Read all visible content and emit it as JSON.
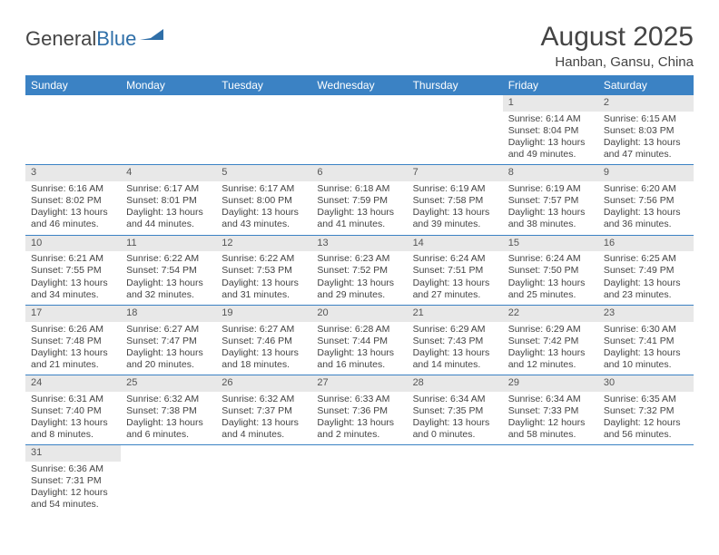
{
  "logo": {
    "text_a": "General",
    "text_b": "Blue"
  },
  "title": "August 2025",
  "subtitle": "Hanban, Gansu, China",
  "colors": {
    "accent": "#3b82c4",
    "daynum_bg": "#e8e8e8",
    "text": "#444444",
    "row_sep": "#3b82c4",
    "background": "#ffffff"
  },
  "weekdays": [
    "Sunday",
    "Monday",
    "Tuesday",
    "Wednesday",
    "Thursday",
    "Friday",
    "Saturday"
  ],
  "weeks": [
    [
      null,
      null,
      null,
      null,
      null,
      {
        "n": "1",
        "sunrise": "Sunrise: 6:14 AM",
        "sunset": "Sunset: 8:04 PM",
        "day1": "Daylight: 13 hours",
        "day2": "and 49 minutes."
      },
      {
        "n": "2",
        "sunrise": "Sunrise: 6:15 AM",
        "sunset": "Sunset: 8:03 PM",
        "day1": "Daylight: 13 hours",
        "day2": "and 47 minutes."
      }
    ],
    [
      {
        "n": "3",
        "sunrise": "Sunrise: 6:16 AM",
        "sunset": "Sunset: 8:02 PM",
        "day1": "Daylight: 13 hours",
        "day2": "and 46 minutes."
      },
      {
        "n": "4",
        "sunrise": "Sunrise: 6:17 AM",
        "sunset": "Sunset: 8:01 PM",
        "day1": "Daylight: 13 hours",
        "day2": "and 44 minutes."
      },
      {
        "n": "5",
        "sunrise": "Sunrise: 6:17 AM",
        "sunset": "Sunset: 8:00 PM",
        "day1": "Daylight: 13 hours",
        "day2": "and 43 minutes."
      },
      {
        "n": "6",
        "sunrise": "Sunrise: 6:18 AM",
        "sunset": "Sunset: 7:59 PM",
        "day1": "Daylight: 13 hours",
        "day2": "and 41 minutes."
      },
      {
        "n": "7",
        "sunrise": "Sunrise: 6:19 AM",
        "sunset": "Sunset: 7:58 PM",
        "day1": "Daylight: 13 hours",
        "day2": "and 39 minutes."
      },
      {
        "n": "8",
        "sunrise": "Sunrise: 6:19 AM",
        "sunset": "Sunset: 7:57 PM",
        "day1": "Daylight: 13 hours",
        "day2": "and 38 minutes."
      },
      {
        "n": "9",
        "sunrise": "Sunrise: 6:20 AM",
        "sunset": "Sunset: 7:56 PM",
        "day1": "Daylight: 13 hours",
        "day2": "and 36 minutes."
      }
    ],
    [
      {
        "n": "10",
        "sunrise": "Sunrise: 6:21 AM",
        "sunset": "Sunset: 7:55 PM",
        "day1": "Daylight: 13 hours",
        "day2": "and 34 minutes."
      },
      {
        "n": "11",
        "sunrise": "Sunrise: 6:22 AM",
        "sunset": "Sunset: 7:54 PM",
        "day1": "Daylight: 13 hours",
        "day2": "and 32 minutes."
      },
      {
        "n": "12",
        "sunrise": "Sunrise: 6:22 AM",
        "sunset": "Sunset: 7:53 PM",
        "day1": "Daylight: 13 hours",
        "day2": "and 31 minutes."
      },
      {
        "n": "13",
        "sunrise": "Sunrise: 6:23 AM",
        "sunset": "Sunset: 7:52 PM",
        "day1": "Daylight: 13 hours",
        "day2": "and 29 minutes."
      },
      {
        "n": "14",
        "sunrise": "Sunrise: 6:24 AM",
        "sunset": "Sunset: 7:51 PM",
        "day1": "Daylight: 13 hours",
        "day2": "and 27 minutes."
      },
      {
        "n": "15",
        "sunrise": "Sunrise: 6:24 AM",
        "sunset": "Sunset: 7:50 PM",
        "day1": "Daylight: 13 hours",
        "day2": "and 25 minutes."
      },
      {
        "n": "16",
        "sunrise": "Sunrise: 6:25 AM",
        "sunset": "Sunset: 7:49 PM",
        "day1": "Daylight: 13 hours",
        "day2": "and 23 minutes."
      }
    ],
    [
      {
        "n": "17",
        "sunrise": "Sunrise: 6:26 AM",
        "sunset": "Sunset: 7:48 PM",
        "day1": "Daylight: 13 hours",
        "day2": "and 21 minutes."
      },
      {
        "n": "18",
        "sunrise": "Sunrise: 6:27 AM",
        "sunset": "Sunset: 7:47 PM",
        "day1": "Daylight: 13 hours",
        "day2": "and 20 minutes."
      },
      {
        "n": "19",
        "sunrise": "Sunrise: 6:27 AM",
        "sunset": "Sunset: 7:46 PM",
        "day1": "Daylight: 13 hours",
        "day2": "and 18 minutes."
      },
      {
        "n": "20",
        "sunrise": "Sunrise: 6:28 AM",
        "sunset": "Sunset: 7:44 PM",
        "day1": "Daylight: 13 hours",
        "day2": "and 16 minutes."
      },
      {
        "n": "21",
        "sunrise": "Sunrise: 6:29 AM",
        "sunset": "Sunset: 7:43 PM",
        "day1": "Daylight: 13 hours",
        "day2": "and 14 minutes."
      },
      {
        "n": "22",
        "sunrise": "Sunrise: 6:29 AM",
        "sunset": "Sunset: 7:42 PM",
        "day1": "Daylight: 13 hours",
        "day2": "and 12 minutes."
      },
      {
        "n": "23",
        "sunrise": "Sunrise: 6:30 AM",
        "sunset": "Sunset: 7:41 PM",
        "day1": "Daylight: 13 hours",
        "day2": "and 10 minutes."
      }
    ],
    [
      {
        "n": "24",
        "sunrise": "Sunrise: 6:31 AM",
        "sunset": "Sunset: 7:40 PM",
        "day1": "Daylight: 13 hours",
        "day2": "and 8 minutes."
      },
      {
        "n": "25",
        "sunrise": "Sunrise: 6:32 AM",
        "sunset": "Sunset: 7:38 PM",
        "day1": "Daylight: 13 hours",
        "day2": "and 6 minutes."
      },
      {
        "n": "26",
        "sunrise": "Sunrise: 6:32 AM",
        "sunset": "Sunset: 7:37 PM",
        "day1": "Daylight: 13 hours",
        "day2": "and 4 minutes."
      },
      {
        "n": "27",
        "sunrise": "Sunrise: 6:33 AM",
        "sunset": "Sunset: 7:36 PM",
        "day1": "Daylight: 13 hours",
        "day2": "and 2 minutes."
      },
      {
        "n": "28",
        "sunrise": "Sunrise: 6:34 AM",
        "sunset": "Sunset: 7:35 PM",
        "day1": "Daylight: 13 hours",
        "day2": "and 0 minutes."
      },
      {
        "n": "29",
        "sunrise": "Sunrise: 6:34 AM",
        "sunset": "Sunset: 7:33 PM",
        "day1": "Daylight: 12 hours",
        "day2": "and 58 minutes."
      },
      {
        "n": "30",
        "sunrise": "Sunrise: 6:35 AM",
        "sunset": "Sunset: 7:32 PM",
        "day1": "Daylight: 12 hours",
        "day2": "and 56 minutes."
      }
    ],
    [
      {
        "n": "31",
        "sunrise": "Sunrise: 6:36 AM",
        "sunset": "Sunset: 7:31 PM",
        "day1": "Daylight: 12 hours",
        "day2": "and 54 minutes."
      },
      null,
      null,
      null,
      null,
      null,
      null
    ]
  ]
}
